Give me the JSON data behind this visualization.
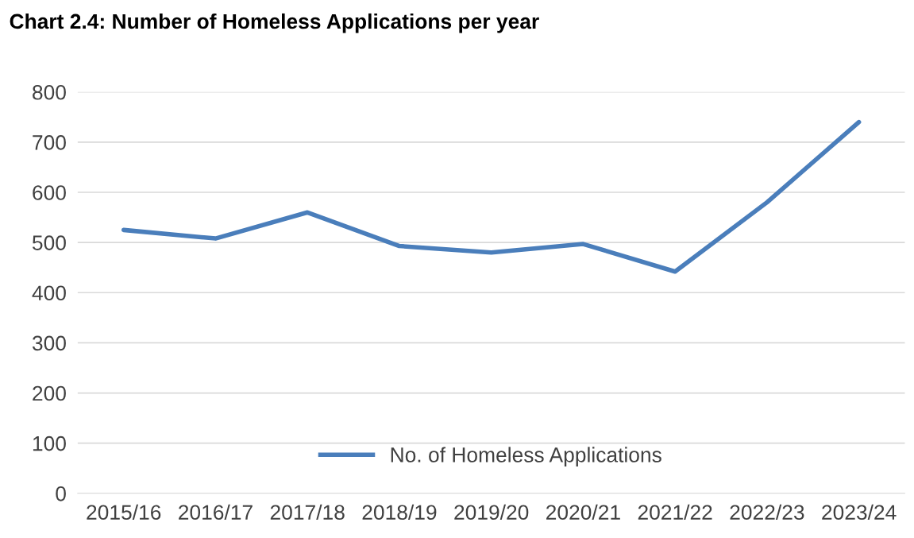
{
  "chart_data": {
    "type": "line",
    "title": "Chart 2.4: Number of Homeless Applications per year",
    "categories": [
      "2015/16",
      "2016/17",
      "2017/18",
      "2018/19",
      "2019/20",
      "2020/21",
      "2021/22",
      "2022/23",
      "2023/24"
    ],
    "series": [
      {
        "name": "No. of Homeless Applications",
        "color": "#4a7ebb",
        "values": [
          525,
          508,
          560,
          493,
          480,
          497,
          442,
          580,
          740
        ]
      }
    ],
    "ylim": [
      0,
      800
    ],
    "yticks": [
      0,
      100,
      200,
      300,
      400,
      500,
      600,
      700,
      800
    ],
    "grid": "y",
    "legend": "bottom",
    "marker": "none",
    "line_style": "solid"
  }
}
